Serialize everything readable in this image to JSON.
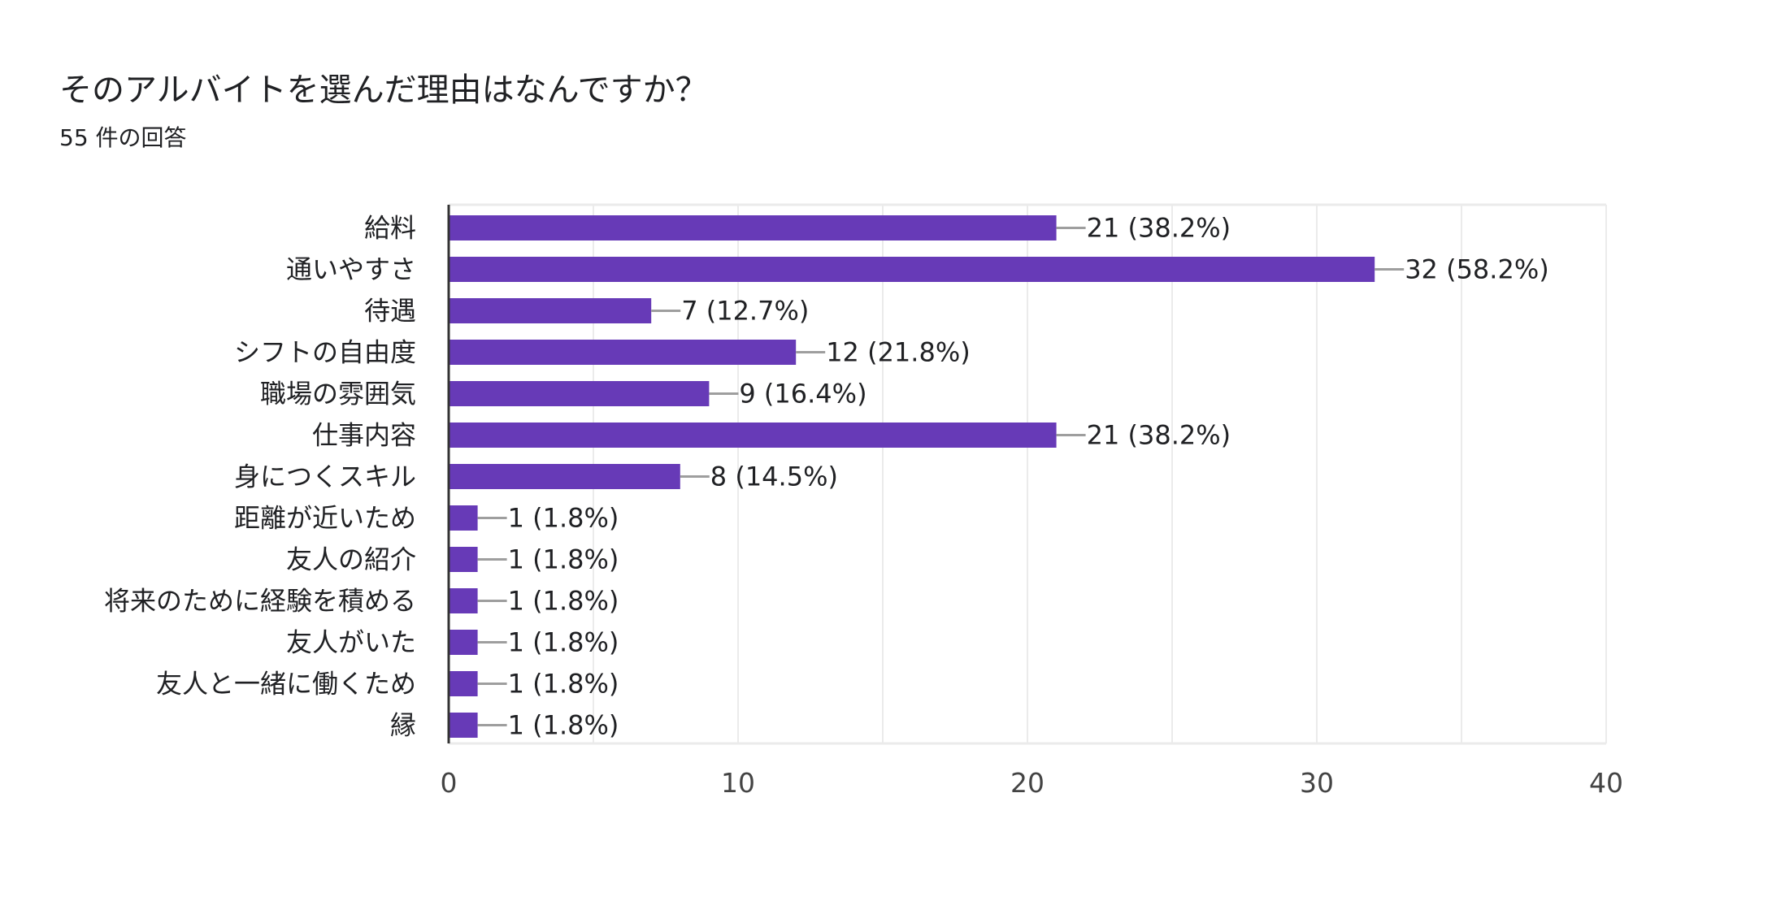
{
  "chart_data": {
    "type": "bar",
    "orientation": "horizontal",
    "title": "そのアルバイトを選んだ理由はなんですか？",
    "subtitle": "55 件の回答",
    "categories": [
      "給料",
      "通いやすさ",
      "待遇",
      "シフトの自由度",
      "職場の雰囲気",
      "仕事内容",
      "身につくスキル",
      "距離が近いため",
      "友人の紹介",
      "将来のために経験を積める",
      "友人がいた",
      "友人と一緒に働くため",
      "縁"
    ],
    "values": [
      21,
      32,
      7,
      12,
      9,
      21,
      8,
      1,
      1,
      1,
      1,
      1,
      1
    ],
    "data_labels": [
      "21 (38.2%)",
      "32 (58.2%)",
      "7 (12.7%)",
      "12 (21.8%)",
      "9 (16.4%)",
      "21 (38.2%)",
      "8 (14.5%)",
      "1 (1.8%)",
      "1 (1.8%)",
      "1 (1.8%)",
      "1 (1.8%)",
      "1 (1.8%)",
      "1 (1.8%)"
    ],
    "xlim": [
      0,
      40
    ],
    "xticks": [
      "0",
      "10",
      "20",
      "30",
      "40"
    ],
    "xtick_values": [
      0,
      10,
      20,
      30,
      40
    ],
    "grid": true,
    "xlabel": "",
    "ylabel": "",
    "bar_color": "#673ab7"
  }
}
